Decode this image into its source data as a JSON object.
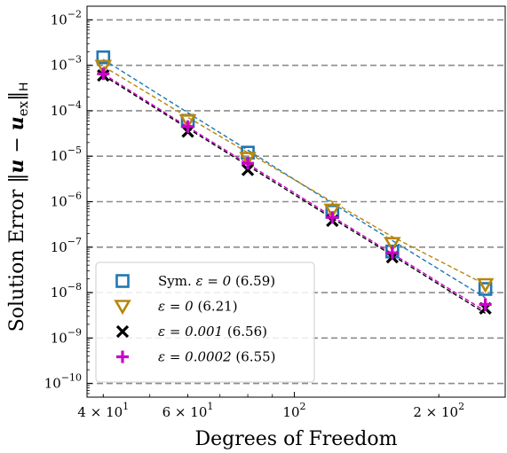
{
  "chart_data": {
    "type": "scatter",
    "title": "",
    "xlabel": "Degrees of Freedom",
    "ylabel": "Solution Error ‖u − u_ex‖_H",
    "xscale": "log",
    "yscale": "log",
    "xlim": [
      37,
      275
    ],
    "ylim": [
      5e-11,
      0.02
    ],
    "grid": "horizontal-dashed",
    "legend_position": "lower-left",
    "x_ticks": [
      {
        "value": 40,
        "base": "4 × 10",
        "exp": "1"
      },
      {
        "value": 60,
        "base": "6 × 10",
        "exp": "1"
      },
      {
        "value": 100,
        "base": "10",
        "exp": "2"
      },
      {
        "value": 200,
        "base": "2 × 10",
        "exp": "2"
      }
    ],
    "y_ticks": [
      {
        "value": 1e-10,
        "base": "10",
        "exp": "−10"
      },
      {
        "value": 1e-09,
        "base": "10",
        "exp": "−9"
      },
      {
        "value": 1e-08,
        "base": "10",
        "exp": "−8"
      },
      {
        "value": 1e-07,
        "base": "10",
        "exp": "−7"
      },
      {
        "value": 1e-06,
        "base": "10",
        "exp": "−6"
      },
      {
        "value": 1e-05,
        "base": "10",
        "exp": "−5"
      },
      {
        "value": 0.0001,
        "base": "10",
        "exp": "−4"
      },
      {
        "value": 0.001,
        "base": "10",
        "exp": "−3"
      },
      {
        "value": 0.01,
        "base": "10",
        "exp": "−2"
      }
    ],
    "x": [
      40,
      60,
      80,
      120,
      160,
      250
    ],
    "series": [
      {
        "name": "Sym. ε = 0 (6.59)",
        "marker": "square",
        "color": "#1f77b4",
        "values": [
          0.0015,
          6e-05,
          1.2e-05,
          6e-07,
          8e-08,
          1.2e-08
        ],
        "fit": [
          0.00135,
          9.1e-05,
          1.36e-05,
          9.2e-07,
          1.4e-07,
          7.7e-09
        ]
      },
      {
        "name": "ε = 0 (6.21)",
        "marker": "triangle-down",
        "color": "#b8860b",
        "values": [
          0.00095,
          6e-05,
          9e-06,
          6.5e-07,
          1.2e-07,
          1.5e-08
        ],
        "fit": [
          0.00095,
          7.2e-05,
          1.2e-05,
          9.9e-07,
          1.7e-07,
          1.5e-08
        ]
      },
      {
        "name": "ε = 0.001 (6.56)",
        "marker": "x",
        "color": "#000000",
        "values": [
          0.0006,
          3.5e-05,
          5e-06,
          3.8e-07,
          6e-08,
          4.5e-09
        ],
        "fit": [
          0.0006,
          4.1e-05,
          6.2e-06,
          4.3e-07,
          6.6e-08,
          3.5e-09
        ]
      },
      {
        "name": "ε = 0.0002 (6.55)",
        "marker": "plus",
        "color": "#cc00cc",
        "values": [
          0.00065,
          4.5e-05,
          7e-06,
          4.5e-07,
          7.5e-08,
          5.5e-09
        ],
        "fit": [
          0.00065,
          4.4e-05,
          6.8e-06,
          4.7e-07,
          7.2e-08,
          3.9e-09
        ]
      }
    ],
    "legend": [
      {
        "prefix": "Sym. ",
        "eq": "ε = 0",
        "rate": "(6.59)"
      },
      {
        "prefix": "",
        "eq": "ε = 0",
        "rate": "(6.21)"
      },
      {
        "prefix": "",
        "eq": "ε = 0.001",
        "rate": "(6.56)"
      },
      {
        "prefix": "",
        "eq": "ε = 0.0002",
        "rate": "(6.55)"
      }
    ]
  }
}
